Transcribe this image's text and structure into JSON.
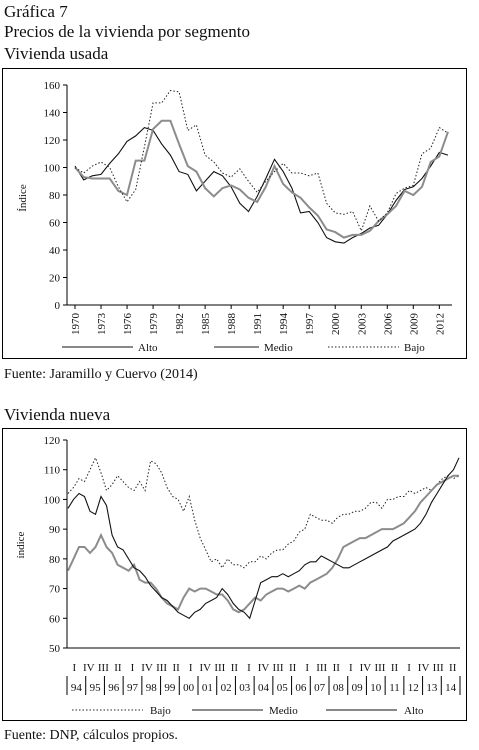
{
  "figure": {
    "label": "Gráfica 7",
    "subtitle": "Precios de la vivienda por segmento"
  },
  "chart_data": [
    {
      "type": "line",
      "title": "Vivienda usada",
      "ylabel": "Índice",
      "xlabel": "",
      "ylim": [
        0,
        160
      ],
      "yticks": [
        0,
        20,
        40,
        60,
        80,
        100,
        120,
        140,
        160
      ],
      "x": [
        1970,
        1971,
        1972,
        1973,
        1974,
        1975,
        1976,
        1977,
        1978,
        1979,
        1980,
        1981,
        1982,
        1983,
        1984,
        1985,
        1986,
        1987,
        1988,
        1989,
        1990,
        1991,
        1992,
        1993,
        1994,
        1995,
        1996,
        1997,
        1998,
        1999,
        2000,
        2001,
        2002,
        2003,
        2004,
        2005,
        2006,
        2007,
        2008,
        2009,
        2010,
        2011,
        2012,
        2013
      ],
      "xticks": [
        "1970",
        "1973",
        "1976",
        "1979",
        "1982",
        "1985",
        "1988",
        "1991",
        "1994",
        "1997",
        "2000",
        "2003",
        "2006",
        "2009",
        "2012"
      ],
      "xtick_values": [
        1970,
        1973,
        1976,
        1979,
        1982,
        1985,
        1988,
        1991,
        1994,
        1997,
        2000,
        2003,
        2006,
        2009,
        2012
      ],
      "legend_position": "bottom",
      "series": [
        {
          "name": "Alto",
          "style": "solid-thin",
          "values": [
            101,
            91,
            94,
            95,
            103,
            110,
            119,
            123,
            129,
            127,
            117,
            109,
            97,
            95,
            83,
            90,
            97,
            94,
            86,
            74,
            68,
            79,
            92,
            106,
            97,
            85,
            67,
            68,
            60,
            49,
            46,
            45,
            49,
            52,
            56,
            58,
            66,
            76,
            84,
            86,
            92,
            101,
            111,
            109
          ]
        },
        {
          "name": "Medio",
          "style": "solid-thick",
          "values": [
            100,
            93,
            92,
            92,
            92,
            83,
            80,
            105,
            105,
            128,
            134,
            134,
            117,
            101,
            97,
            85,
            79,
            85,
            87,
            84,
            78,
            75,
            86,
            101,
            88,
            82,
            78,
            71,
            65,
            55,
            53,
            49,
            51,
            51,
            54,
            61,
            66,
            72,
            83,
            80,
            86,
            104,
            108,
            126
          ]
        },
        {
          "name": "Bajo",
          "style": "dotted",
          "values": [
            100,
            96,
            101,
            104,
            100,
            86,
            75,
            84,
            115,
            147,
            147,
            156,
            155,
            127,
            131,
            109,
            104,
            96,
            93,
            99,
            90,
            82,
            90,
            97,
            103,
            96,
            96,
            94,
            96,
            74,
            67,
            66,
            68,
            54,
            72,
            61,
            67,
            81,
            85,
            87,
            110,
            114,
            129,
            125
          ]
        }
      ]
    },
    {
      "type": "line",
      "title": "Vivienda nueva",
      "ylabel": "índice",
      "xlabel": "",
      "ylim": [
        50,
        120
      ],
      "yticks": [
        50,
        60,
        70,
        80,
        90,
        100,
        110,
        120
      ],
      "quarter_labels": [
        "I",
        "IV",
        "III",
        "II",
        "I",
        "IV",
        "III",
        "II",
        "I",
        "IV",
        "III",
        "II",
        "I",
        "IV",
        "III",
        "II",
        "I",
        "III",
        "II",
        "I",
        "IV",
        "III",
        "II",
        "I",
        "IV",
        "III",
        "II"
      ],
      "year_labels": [
        "94",
        "95",
        "96",
        "97",
        "98",
        "99",
        "00",
        "01",
        "02",
        "03",
        "04",
        "05",
        "06",
        "07",
        "08",
        "09",
        "10",
        "11",
        "12",
        "13",
        "14"
      ],
      "legend_position": "bottom",
      "series": [
        {
          "name": "Bajo",
          "style": "dotted",
          "values": [
            102,
            104,
            107,
            106,
            110,
            114,
            109,
            103,
            105,
            108,
            106,
            104,
            103,
            106,
            103,
            113,
            112,
            109,
            104,
            101,
            100,
            96,
            101,
            93,
            87,
            83,
            79,
            80,
            77,
            80,
            78,
            78,
            77,
            79,
            79,
            81,
            80,
            82,
            83,
            83,
            85,
            86,
            89,
            90,
            95,
            94,
            93,
            93,
            92,
            94,
            95,
            95,
            96,
            96,
            97,
            99,
            99,
            97,
            100,
            100,
            101,
            101,
            103,
            102,
            103,
            104,
            103,
            105,
            107,
            108,
            107,
            108
          ]
        },
        {
          "name": "Medio",
          "style": "solid-thick",
          "values": [
            76,
            80,
            84,
            84,
            82,
            84,
            88,
            84,
            82,
            78,
            77,
            76,
            78,
            73,
            72,
            72,
            70,
            67,
            65,
            64,
            63,
            67,
            70,
            69,
            70,
            70,
            69,
            68,
            68,
            66,
            63,
            62,
            63,
            65,
            67,
            66,
            68,
            69,
            70,
            70,
            69,
            70,
            71,
            70,
            72,
            73,
            74,
            75,
            77,
            80,
            84,
            85,
            86,
            87,
            87,
            88,
            89,
            90,
            90,
            90,
            91,
            92,
            94,
            96,
            99,
            101,
            103,
            105,
            106,
            107,
            108,
            108
          ]
        },
        {
          "name": "Alto",
          "style": "solid-thin",
          "values": [
            97,
            100,
            102,
            101,
            96,
            95,
            101,
            98,
            88,
            84,
            83,
            80,
            77,
            76,
            74,
            71,
            69,
            67,
            66,
            64,
            62,
            61,
            60,
            62,
            63,
            65,
            66,
            67,
            70,
            68,
            65,
            63,
            62,
            60,
            66,
            72,
            73,
            74,
            74,
            75,
            74,
            75,
            76,
            78,
            79,
            79,
            81,
            80,
            79,
            78,
            77,
            77,
            78,
            79,
            80,
            81,
            82,
            83,
            84,
            86,
            87,
            88,
            89,
            90,
            92,
            95,
            99,
            102,
            105,
            108,
            110,
            114
          ]
        }
      ]
    }
  ],
  "sources": {
    "chart1": "Fuente: Jaramillo y Cuervo (2014)",
    "chart2": "Fuente: DNP, cálculos propios."
  },
  "colors": {
    "Alto": "#111111",
    "Medio": "#8c8c8c",
    "Bajo": "#222222"
  }
}
